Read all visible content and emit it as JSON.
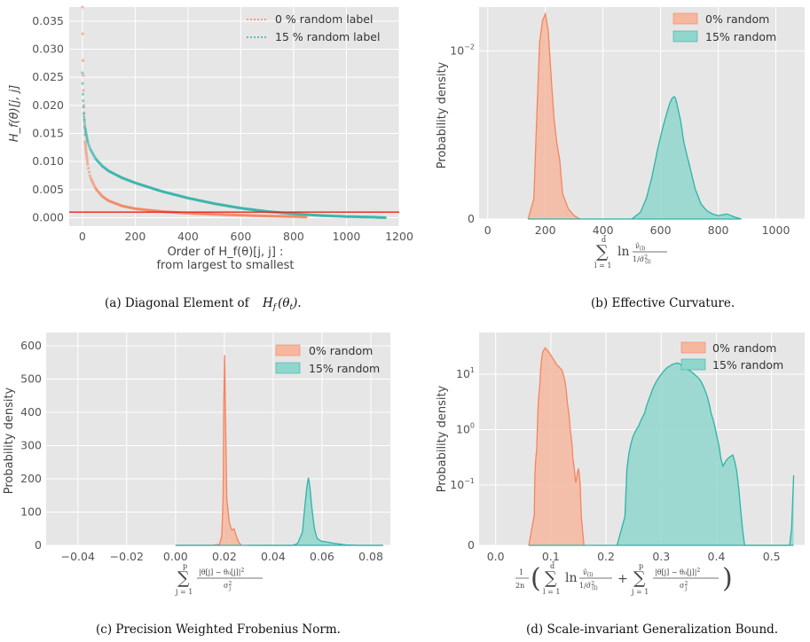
{
  "colors": {
    "panel_bg": "#e6e6e6",
    "grid": "#ffffff",
    "orange": "#f4845f",
    "orange_fill": "#f6b79f",
    "teal": "#2db3a6",
    "teal_fill": "#8fd6cc",
    "red_line": "#e8201a"
  },
  "captions": {
    "a": "(a) Diagonal Element of",
    "a_math": "H",
    "a_math_sub": "f",
    "a_math_arg": "(θ",
    "a_math_arg_sub": "t",
    "a_math_end": ").",
    "b": "(b) Effective Curvature.",
    "c": "(c) Precision Weighted Frobenius Norm.",
    "d": "(d) Scale-invariant Generalization Bound."
  },
  "chart_data": [
    {
      "type": "scatter",
      "panel": "a",
      "ylabel": "H_f(θ)[j, j]",
      "xlabel_line1": "Order of H_f(θ)[j, j] :",
      "xlabel_line2": "from largest to smallest",
      "xlim": [
        -50,
        1200
      ],
      "ylim": [
        -0.0015,
        0.0375
      ],
      "xticks": [
        0,
        200,
        400,
        600,
        800,
        1000,
        1200
      ],
      "yticks": [
        0.0,
        0.005,
        0.01,
        0.015,
        0.02,
        0.025,
        0.03,
        0.035
      ],
      "xtick_labels": [
        "0",
        "200",
        "400",
        "600",
        "800",
        "1000",
        "1200"
      ],
      "ytick_labels": [
        "0.000",
        "0.005",
        "0.010",
        "0.015",
        "0.020",
        "0.025",
        "0.030",
        "0.035"
      ],
      "legend_position": "top-right",
      "hline": 0.001,
      "series": [
        {
          "name": "0 % random label",
          "color": "orange",
          "n": 850,
          "x": [
            0,
            2,
            5,
            10,
            20,
            30,
            50,
            75,
            100,
            150,
            200,
            300,
            400,
            500,
            600,
            700,
            800,
            850
          ],
          "y": [
            0.0375,
            0.028,
            0.02,
            0.0135,
            0.0095,
            0.0072,
            0.0052,
            0.0038,
            0.003,
            0.0021,
            0.0016,
            0.0011,
            0.0008,
            0.0006,
            0.00045,
            0.0003,
            0.0002,
            0.0001
          ]
        },
        {
          "name": "15 % random label",
          "color": "teal",
          "n": 1150,
          "x": [
            0,
            2,
            5,
            10,
            20,
            30,
            50,
            75,
            100,
            150,
            200,
            300,
            400,
            500,
            600,
            700,
            800,
            900,
            1000,
            1100,
            1150
          ],
          "y": [
            0.0258,
            0.022,
            0.0185,
            0.016,
            0.0135,
            0.0122,
            0.0105,
            0.0092,
            0.0083,
            0.0071,
            0.0062,
            0.0047,
            0.0035,
            0.0025,
            0.0017,
            0.0011,
            0.0007,
            0.0004,
            0.0002,
            0.0001,
            0.0
          ]
        }
      ]
    },
    {
      "type": "area",
      "panel": "b",
      "ylabel": "Probability density",
      "xlim": [
        -30,
        1100
      ],
      "ylim": [
        0,
        0.0126
      ],
      "xticks": [
        0,
        200,
        400,
        600,
        800,
        1000
      ],
      "xtick_labels": [
        "0",
        "200",
        "400",
        "600",
        "800",
        "1000"
      ],
      "ytick_labels": [
        {
          "value": 0.0,
          "base": "0",
          "exp": ""
        },
        {
          "value": 0.01,
          "base": "10",
          "exp": "−2"
        }
      ],
      "legend_position": "top-right",
      "series": [
        {
          "name": "0% random",
          "color": "orange",
          "x": [
            140,
            160,
            170,
            180,
            190,
            200,
            210,
            220,
            230,
            240,
            250,
            260,
            280,
            300,
            320
          ],
          "y": [
            0,
            0.0012,
            0.006,
            0.0105,
            0.0118,
            0.0122,
            0.0112,
            0.0085,
            0.006,
            0.0045,
            0.0035,
            0.0015,
            0.0006,
            0.0002,
            0
          ]
        },
        {
          "name": "15% random",
          "color": "teal",
          "x": [
            500,
            530,
            550,
            570,
            590,
            610,
            620,
            630,
            640,
            650,
            660,
            670,
            680,
            700,
            720,
            740,
            760,
            780,
            800,
            830,
            860,
            880
          ],
          "y": [
            0,
            0.0004,
            0.0012,
            0.0025,
            0.0042,
            0.0056,
            0.0062,
            0.0068,
            0.0072,
            0.0073,
            0.0066,
            0.0058,
            0.0046,
            0.0032,
            0.0018,
            0.0009,
            0.0005,
            0.0003,
            0.0002,
            0.0003,
            0.0001,
            0
          ]
        }
      ],
      "xlabel_math": {
        "lhs_top": "d̃",
        "lhs_bottom": "l = 1",
        "ln": "ln",
        "num": "ν̃",
        "num_sub": "(l)",
        "den": "1/σ̃",
        "den_sup": "2",
        "den_sub": "(l)"
      }
    },
    {
      "type": "area",
      "panel": "c",
      "ylabel": "Probability density",
      "xlim": [
        -0.053,
        0.088
      ],
      "ylim": [
        0,
        640
      ],
      "xticks": [
        -0.04,
        -0.02,
        0.0,
        0.02,
        0.04,
        0.06,
        0.08
      ],
      "xtick_labels": [
        "−0.04",
        "−0.02",
        "0.00",
        "0.02",
        "0.04",
        "0.06",
        "0.08"
      ],
      "yticks": [
        0,
        100,
        200,
        300,
        400,
        500,
        600
      ],
      "ytick_labels": [
        "0",
        "100",
        "200",
        "300",
        "400",
        "500",
        "600"
      ],
      "legend_position": "top-right",
      "series": [
        {
          "name": "0% random",
          "color": "orange",
          "x": [
            0.0,
            0.015,
            0.018,
            0.019,
            0.0195,
            0.02,
            0.0205,
            0.021,
            0.022,
            0.023,
            0.024,
            0.025,
            0.026,
            0.027
          ],
          "y": [
            0,
            0,
            3,
            30,
            150,
            620,
            380,
            140,
            70,
            45,
            50,
            25,
            8,
            0
          ]
        },
        {
          "name": "15% random",
          "color": "teal",
          "x": [
            0.03,
            0.048,
            0.05,
            0.052,
            0.053,
            0.054,
            0.0545,
            0.055,
            0.056,
            0.057,
            0.058,
            0.06,
            0.062,
            0.065,
            0.068,
            0.07,
            0.075,
            0.085
          ],
          "y": [
            0,
            0,
            5,
            40,
            120,
            190,
            205,
            180,
            100,
            45,
            20,
            12,
            10,
            6,
            3,
            1,
            0,
            0
          ]
        }
      ],
      "xlabel_math": {
        "lhs_top": "p",
        "lhs_bottom": "j = 1",
        "num": "|θ[j] − θ₀[j]|",
        "num_sup": "2",
        "den": "σ",
        "den_sup": "2",
        "den_sub": "j"
      }
    },
    {
      "type": "area",
      "panel": "d",
      "ylabel": "Probability density",
      "yscale": "symlog",
      "xlim": [
        -0.03,
        0.56
      ],
      "ylim": [
        0,
        50
      ],
      "xticks": [
        0.0,
        0.1,
        0.2,
        0.3,
        0.4,
        0.5
      ],
      "xtick_labels": [
        "0.0",
        "0.1",
        "0.2",
        "0.3",
        "0.4",
        "0.5"
      ],
      "ytick_labels": [
        {
          "value": 0,
          "base": "0",
          "exp": ""
        },
        {
          "value": 0.1,
          "base": "10",
          "exp": "−1"
        },
        {
          "value": 1,
          "base": "10",
          "exp": "0"
        },
        {
          "value": 10,
          "base": "10",
          "exp": "1"
        }
      ],
      "legend_position": "top-right",
      "series": [
        {
          "name": "0% random",
          "color": "orange",
          "x": [
            0.06,
            0.07,
            0.075,
            0.08,
            0.085,
            0.09,
            0.1,
            0.11,
            0.12,
            0.125,
            0.13,
            0.135,
            0.14,
            0.145,
            0.15,
            0.155,
            0.16
          ],
          "y": [
            0,
            0.05,
            0.5,
            6,
            25,
            30,
            22,
            15,
            12,
            8,
            3,
            1,
            0.3,
            0.1,
            0.2,
            0.05,
            0
          ]
        },
        {
          "name": "15% random",
          "color": "teal",
          "x": [
            0.22,
            0.235,
            0.24,
            0.25,
            0.26,
            0.27,
            0.28,
            0.29,
            0.3,
            0.31,
            0.32,
            0.33,
            0.34,
            0.35,
            0.36,
            0.37,
            0.38,
            0.39,
            0.4,
            0.41,
            0.42,
            0.43,
            0.44,
            0.45,
            0.5,
            0.535,
            0.538,
            0.54
          ],
          "y": [
            0,
            0.05,
            0.3,
            0.8,
            1.2,
            2,
            4,
            7,
            10,
            13,
            15,
            16,
            14,
            12,
            10,
            8,
            5,
            2,
            0.8,
            0.2,
            0.3,
            0.35,
            0.1,
            0,
            0,
            0,
            0.06,
            0.15
          ]
        }
      ],
      "xlabel_math": {
        "pre_num": "1",
        "pre_den": "2n",
        "lhs_top": "d̃",
        "lhs_bottom": "l = 1",
        "ln": "ln",
        "num": "ν̃",
        "num_sub": "(l)",
        "den": "1/σ̃",
        "den_sup": "2",
        "den_sub": "(l)",
        "plus": "+",
        "rhs_top": "p",
        "rhs_bottom": "j = 1",
        "num2": "|θ[j] − θ₀[j]|",
        "num2_sup": "2",
        "den2": "σ",
        "den2_sup": "2",
        "den2_sub": "j"
      }
    }
  ]
}
